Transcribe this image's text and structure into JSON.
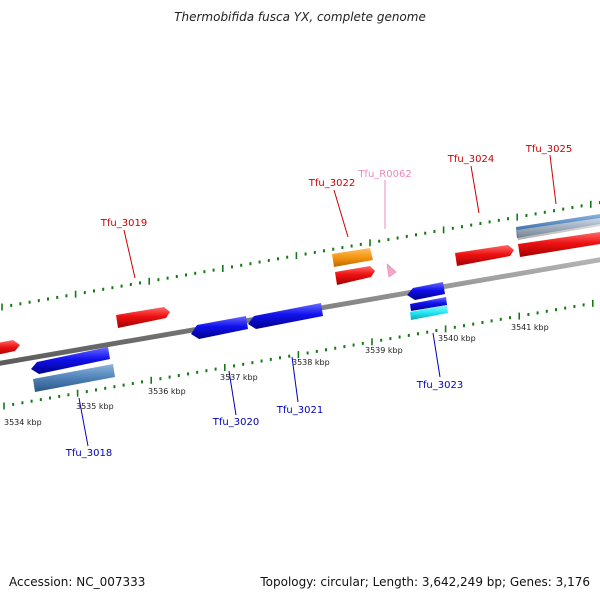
{
  "title": "Thermobifida fusca YX, complete genome",
  "footer": {
    "accession": "Accession: NC_007333",
    "summary": "Topology: circular; Length: 3,642,249 bp; Genes: 3,176"
  },
  "colors": {
    "background": "#ffffff",
    "backbone": "#7f7f7f",
    "tick": "#157a15",
    "cds_forward": "#ee1111",
    "cds_reverse": "#1111ee",
    "rrna_orange": "#f5950f",
    "trna_pink": "#f7a6c8",
    "gene_steelblue": "#4f82b8",
    "gene_cyan": "#26e8f5",
    "gene_gray": "#bdbdbd",
    "label_forward": "#cc0000",
    "label_reverse": "#0000bb",
    "label_rna": "#ee88bb"
  },
  "scale": {
    "unit": "kbp",
    "labels": [
      "3534 kbp",
      "3535 kbp",
      "3536 kbp",
      "3537 kbp",
      "3538 kbp",
      "3539 kbp",
      "3540 kbp",
      "3541 kbp"
    ]
  },
  "gene_labels": [
    {
      "id": "Tfu_3018",
      "strand": "reverse"
    },
    {
      "id": "Tfu_3019",
      "strand": "forward"
    },
    {
      "id": "Tfu_3020",
      "strand": "reverse"
    },
    {
      "id": "Tfu_3021",
      "strand": "reverse"
    },
    {
      "id": "Tfu_3022",
      "strand": "forward"
    },
    {
      "id": "Tfu_R0062",
      "strand": "rna"
    },
    {
      "id": "Tfu_3023",
      "strand": "reverse"
    },
    {
      "id": "Tfu_3024",
      "strand": "forward"
    },
    {
      "id": "Tfu_3025",
      "strand": "forward"
    }
  ]
}
